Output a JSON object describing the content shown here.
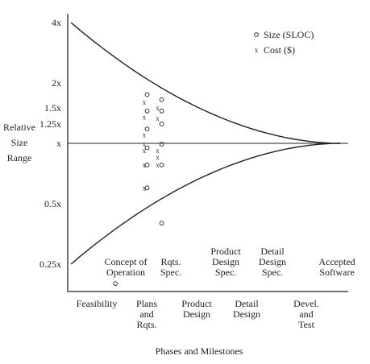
{
  "chart_data": {
    "type": "scatter",
    "xlabel": "Phases and Milestones",
    "ylabel": [
      "Relative",
      "Size",
      "Range"
    ],
    "y_scale": "log",
    "yticks": [
      {
        "label": "4x",
        "value": 4
      },
      {
        "label": "2x",
        "value": 2
      },
      {
        "label": "1.5x",
        "value": 1.5
      },
      {
        "label": "1.25x",
        "value": 1.25
      },
      {
        "label": "x",
        "value": 1
      },
      {
        "label": "0.5x",
        "value": 0.5
      },
      {
        "label": "0.25x",
        "value": 0.25
      }
    ],
    "milestones": [
      {
        "id": "m1",
        "lines": [
          "Concept of",
          "Operation"
        ]
      },
      {
        "id": "m2",
        "lines": [
          "Rqts.",
          "Spec."
        ]
      },
      {
        "id": "m3",
        "lines": [
          "Product",
          "Design",
          "Spec."
        ]
      },
      {
        "id": "m4",
        "lines": [
          "Detail",
          "Design",
          "Spec."
        ]
      },
      {
        "id": "m5",
        "lines": [
          "Accepted",
          "Software"
        ]
      }
    ],
    "phases": [
      {
        "id": "p1",
        "lines": [
          "Feasibility"
        ]
      },
      {
        "id": "p2",
        "lines": [
          "Plans",
          "and",
          "Rqts."
        ]
      },
      {
        "id": "p3",
        "lines": [
          "Product",
          "Design"
        ]
      },
      {
        "id": "p4",
        "lines": [
          "Detail",
          "Design"
        ]
      },
      {
        "id": "p5",
        "lines": [
          "Devel.",
          "and",
          "Test"
        ]
      }
    ],
    "legend": [
      {
        "symbol": "o",
        "label": "Size (SLOC)"
      },
      {
        "symbol": "x",
        "label": "Cost ($)"
      }
    ],
    "legend_position": "top-right",
    "envelope": {
      "x_start": 0,
      "x_end": 1,
      "upper_start": 4,
      "lower_start": 0.25,
      "converge": 1
    },
    "series": [
      {
        "name": "Size (SLOC)",
        "marker": "o",
        "points": [
          {
            "x": 0.283,
            "y": 1.75
          },
          {
            "x": 0.283,
            "y": 1.45
          },
          {
            "x": 0.283,
            "y": 1.18
          },
          {
            "x": 0.283,
            "y": 0.95
          },
          {
            "x": 0.283,
            "y": 0.78
          },
          {
            "x": 0.283,
            "y": 0.6
          },
          {
            "x": 0.337,
            "y": 1.65
          },
          {
            "x": 0.337,
            "y": 1.45
          },
          {
            "x": 0.337,
            "y": 1.25
          },
          {
            "x": 0.337,
            "y": 0.99
          },
          {
            "x": 0.337,
            "y": 0.78
          },
          {
            "x": 0.337,
            "y": 0.4
          },
          {
            "x": 0.165,
            "y": 0.2
          }
        ]
      },
      {
        "name": "Cost ($)",
        "marker": "x",
        "points": [
          {
            "x": 0.272,
            "y": 1.6
          },
          {
            "x": 0.272,
            "y": 1.35
          },
          {
            "x": 0.272,
            "y": 1.1
          },
          {
            "x": 0.272,
            "y": 0.99
          },
          {
            "x": 0.272,
            "y": 0.92
          },
          {
            "x": 0.272,
            "y": 0.78
          },
          {
            "x": 0.272,
            "y": 0.6
          },
          {
            "x": 0.322,
            "y": 1.5
          },
          {
            "x": 0.322,
            "y": 1.33
          },
          {
            "x": 0.322,
            "y": 0.92
          },
          {
            "x": 0.322,
            "y": 0.85
          },
          {
            "x": 0.322,
            "y": 0.78
          }
        ]
      }
    ]
  }
}
